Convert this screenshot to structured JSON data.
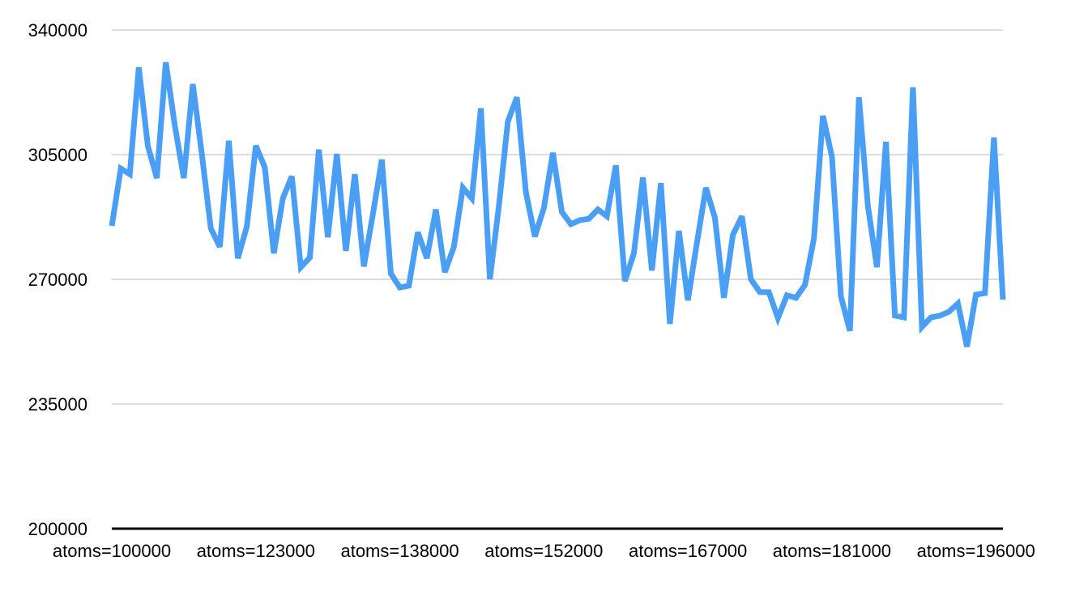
{
  "chart_data": {
    "type": "line",
    "categories": [
      "atoms=100000",
      null,
      null,
      null,
      null,
      null,
      null,
      null,
      null,
      null,
      null,
      null,
      null,
      null,
      null,
      null,
      "atoms=123000",
      null,
      null,
      null,
      null,
      null,
      null,
      null,
      null,
      null,
      null,
      null,
      null,
      null,
      null,
      null,
      "atoms=138000",
      null,
      null,
      null,
      null,
      null,
      null,
      null,
      null,
      null,
      null,
      null,
      null,
      null,
      null,
      null,
      "atoms=152000",
      null,
      null,
      null,
      null,
      null,
      null,
      null,
      null,
      null,
      null,
      null,
      null,
      null,
      null,
      null,
      "atoms=167000",
      null,
      null,
      null,
      null,
      null,
      null,
      null,
      null,
      null,
      null,
      null,
      null,
      null,
      null,
      null,
      "atoms=181000",
      null,
      null,
      null,
      null,
      null,
      null,
      null,
      null,
      null,
      null,
      null,
      null,
      null,
      null,
      null,
      "atoms=196000",
      null,
      null,
      null
    ],
    "series": [
      {
        "color": "#4a9ff5",
        "values": [
          285000,
          301100,
          299500,
          329500,
          307500,
          298400,
          330900,
          313200,
          298400,
          324800,
          305200,
          284300,
          279100,
          308900,
          275900,
          284800,
          307500,
          301400,
          277300,
          292700,
          298900,
          273400,
          276100,
          306400,
          281800,
          305200,
          278000,
          299500,
          273600,
          288200,
          303600,
          271600,
          267700,
          268200,
          283200,
          275900,
          289600,
          272000,
          279100,
          295700,
          292700,
          318000,
          270000,
          290500,
          314300,
          321100,
          294500,
          282000,
          290000,
          305500,
          288900,
          285500,
          286600,
          287000,
          289600,
          287700,
          302000,
          269500,
          277300,
          298600,
          272500,
          297000,
          257500,
          283600,
          264100,
          280200,
          295700,
          287300,
          264800,
          282500,
          287700,
          270000,
          266400,
          266400,
          259100,
          265500,
          264800,
          268400,
          281400,
          315900,
          304500,
          265200,
          255500,
          321100,
          290500,
          273400,
          308600,
          259800,
          259300,
          323900,
          256600,
          259300,
          259800,
          260900,
          263200,
          251100,
          265700,
          266100,
          309800,
          264300
        ]
      }
    ],
    "ylim": [
      200000,
      340000
    ],
    "yticks": [
      200000,
      235000,
      270000,
      305000,
      340000
    ],
    "grid": true
  }
}
